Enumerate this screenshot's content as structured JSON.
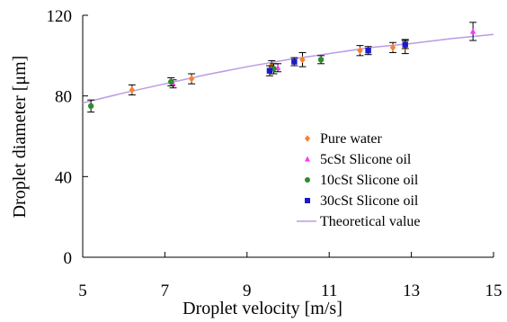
{
  "chart_data": {
    "type": "scatter",
    "title": "",
    "xlabel": "Droplet velocity [m/s]",
    "ylabel": "Droplet diameter [μm]",
    "xlim": [
      5,
      15
    ],
    "ylim": [
      0,
      120
    ],
    "xticks": [
      5,
      7,
      9,
      11,
      13,
      15
    ],
    "yticks": [
      0,
      40,
      80,
      120
    ],
    "xtick_labels": [
      "5",
      "7",
      "9",
      "11",
      "13",
      "15"
    ],
    "ytick_labels": [
      "0",
      "40",
      "80",
      "120"
    ],
    "grid": false,
    "legend_position": "bottom-right",
    "series": [
      {
        "name": "Pure water",
        "marker": "diamond",
        "color": "#ff7f2a",
        "points": [
          {
            "x": 6.2,
            "y": 83,
            "err": 2.5
          },
          {
            "x": 7.65,
            "y": 88.5,
            "err": 2.5
          },
          {
            "x": 9.6,
            "y": 95,
            "err": 2.5
          },
          {
            "x": 10.35,
            "y": 98,
            "err": 3.5
          },
          {
            "x": 11.75,
            "y": 102.5,
            "err": 2.5
          },
          {
            "x": 12.55,
            "y": 104,
            "err": 2.5
          },
          {
            "x": 12.85,
            "y": 104.5,
            "err": 3.5
          }
        ]
      },
      {
        "name": "5cSt Slicone oil",
        "marker": "triangle",
        "color": "#ff33ff",
        "points": [
          {
            "x": 7.2,
            "y": 86,
            "err": 2
          },
          {
            "x": 9.75,
            "y": 94,
            "err": 2
          },
          {
            "x": 14.5,
            "y": 112,
            "err": 4.5
          }
        ]
      },
      {
        "name": "10cSt Slicone oil",
        "marker": "circle",
        "color": "#2e8b2e",
        "points": [
          {
            "x": 5.2,
            "y": 75,
            "err": 3
          },
          {
            "x": 7.15,
            "y": 87,
            "err": 2
          },
          {
            "x": 9.65,
            "y": 93.5,
            "err": 2.5
          },
          {
            "x": 10.8,
            "y": 98,
            "err": 2
          }
        ]
      },
      {
        "name": "30cSt Slicone oil",
        "marker": "square",
        "color": "#1a1acc",
        "points": [
          {
            "x": 9.55,
            "y": 92.5,
            "err": 2.5
          },
          {
            "x": 10.15,
            "y": 97,
            "err": 2
          },
          {
            "x": 11.95,
            "y": 102.5,
            "err": 2
          },
          {
            "x": 12.85,
            "y": 105.5,
            "err": 2
          }
        ]
      }
    ],
    "theory": {
      "name": "Theoretical value",
      "color": "#b99be6",
      "x": [
        5,
        6,
        7,
        8,
        9,
        10,
        11,
        12,
        13,
        14,
        15
      ],
      "y": [
        76.5,
        81.5,
        86,
        90.5,
        94.5,
        98,
        101,
        104,
        106,
        108.5,
        110.5
      ]
    }
  }
}
